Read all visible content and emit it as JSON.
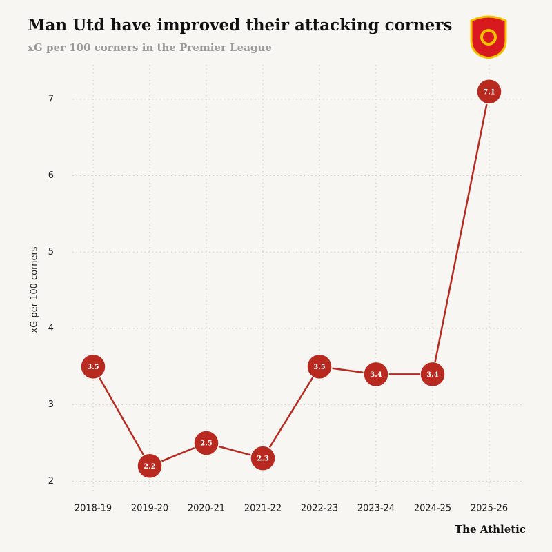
{
  "chart_data": {
    "type": "line",
    "title": "Man Utd have improved their attacking corners",
    "subtitle": "xG per 100 corners in the Premier League",
    "y_label": "xG per 100 corners",
    "categories": [
      "2018-19",
      "2019-20",
      "2020-21",
      "2021-22",
      "2022-23",
      "2023-24",
      "2024-25",
      "2025-26"
    ],
    "values": [
      3.5,
      2.2,
      2.5,
      2.3,
      3.5,
      3.4,
      3.4,
      7.1
    ],
    "color": "#b82a20",
    "ylim": [
      1.85,
      7.45
    ],
    "yticks": [
      2,
      3,
      4,
      5,
      6,
      7
    ],
    "grid": true,
    "source": "The Athletic"
  }
}
